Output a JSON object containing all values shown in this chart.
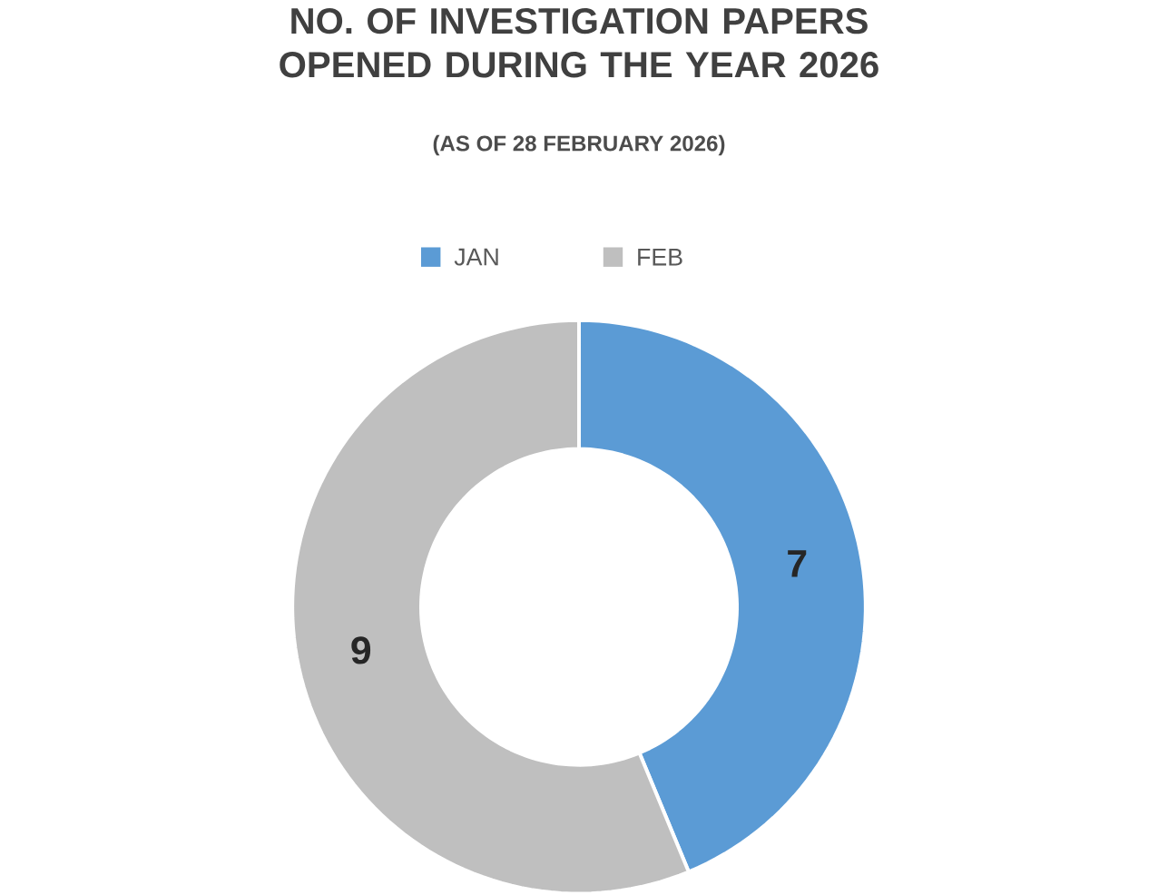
{
  "chart_data": {
    "type": "donut",
    "title": "NO. OF INVESTIGATION PAPERS OPENED DURING THE YEAR 2026",
    "subtitle": "(AS OF 28 FEBRUARY 2026)",
    "categories": [
      "JAN",
      "FEB"
    ],
    "values": [
      7,
      9
    ],
    "colors": [
      "#5b9bd5",
      "#bfbfbf"
    ],
    "data_labels": true,
    "legend": "top"
  }
}
